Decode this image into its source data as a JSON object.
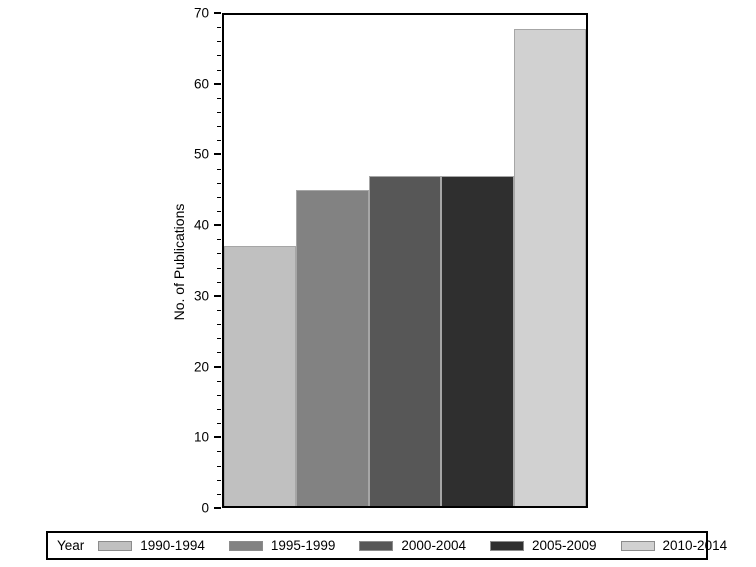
{
  "chart_data": {
    "type": "bar",
    "title": "",
    "xlabel": "",
    "ylabel": "No. of Publications",
    "categories": [
      "1990-1994",
      "1995-1999",
      "2000-2004",
      "2005-2009",
      "2010-2014"
    ],
    "values": [
      37,
      45,
      47,
      47,
      68
    ],
    "ylim": [
      0,
      70
    ],
    "yticks": [
      0,
      10,
      20,
      30,
      40,
      50,
      60,
      70
    ],
    "ytick_step": 10,
    "minor_tick_step": 2,
    "grid": false,
    "legend_title": "Year",
    "legend_position": "bottom",
    "bar_colors": [
      "#c0c0c0",
      "#828282",
      "#575757",
      "#2f2f2f",
      "#d1d1d1"
    ],
    "bar_border_color": "#a6a6a6",
    "frame_color": "#000000",
    "background_color": "#ffffff"
  }
}
